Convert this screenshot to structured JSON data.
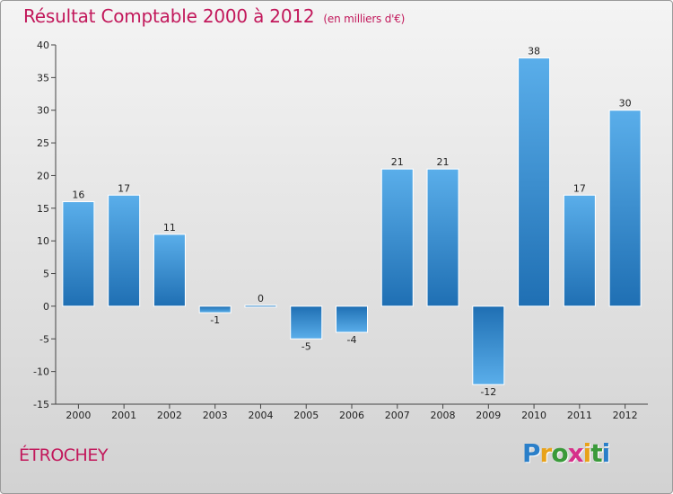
{
  "header": {
    "title": "Résultat Comptable 2000 à 2012",
    "subtitle": "(en milliers d'€)"
  },
  "commune": "ÉTROCHEY",
  "logo": {
    "letters": [
      "P",
      "r",
      "o",
      "x",
      "i",
      "t",
      "i"
    ],
    "colors": [
      "#2a7fc9",
      "#e8a21a",
      "#3a9a3a",
      "#d6318a",
      "#e8a21a",
      "#3a9a3a",
      "#2a7fc9"
    ]
  },
  "colors": {
    "title": "#c2185b",
    "bar_light": "#5aaeea",
    "bar_dark": "#1f6fb3"
  },
  "chart_data": {
    "type": "bar",
    "title": "Résultat Comptable 2000 à 2012",
    "subtitle": "(en milliers d'€)",
    "categories": [
      "2000",
      "2001",
      "2002",
      "2003",
      "2004",
      "2005",
      "2006",
      "2007",
      "2008",
      "2009",
      "2010",
      "2011",
      "2012"
    ],
    "values": [
      16,
      17,
      11,
      -1,
      0,
      -5,
      -4,
      21,
      21,
      -12,
      38,
      17,
      30
    ],
    "labels": [
      "16",
      "17",
      "11",
      "-1",
      "0",
      "-5",
      "-4",
      "21",
      "21",
      "-12",
      "38",
      "17",
      "30"
    ],
    "ylim": [
      -15,
      40
    ],
    "yticks": [
      "40",
      "35",
      "30",
      "25",
      "20",
      "15",
      "10",
      "5",
      "0",
      "-5",
      "-10",
      "-15"
    ],
    "xlabel": "",
    "ylabel": "",
    "grid": false,
    "legend": "none"
  }
}
